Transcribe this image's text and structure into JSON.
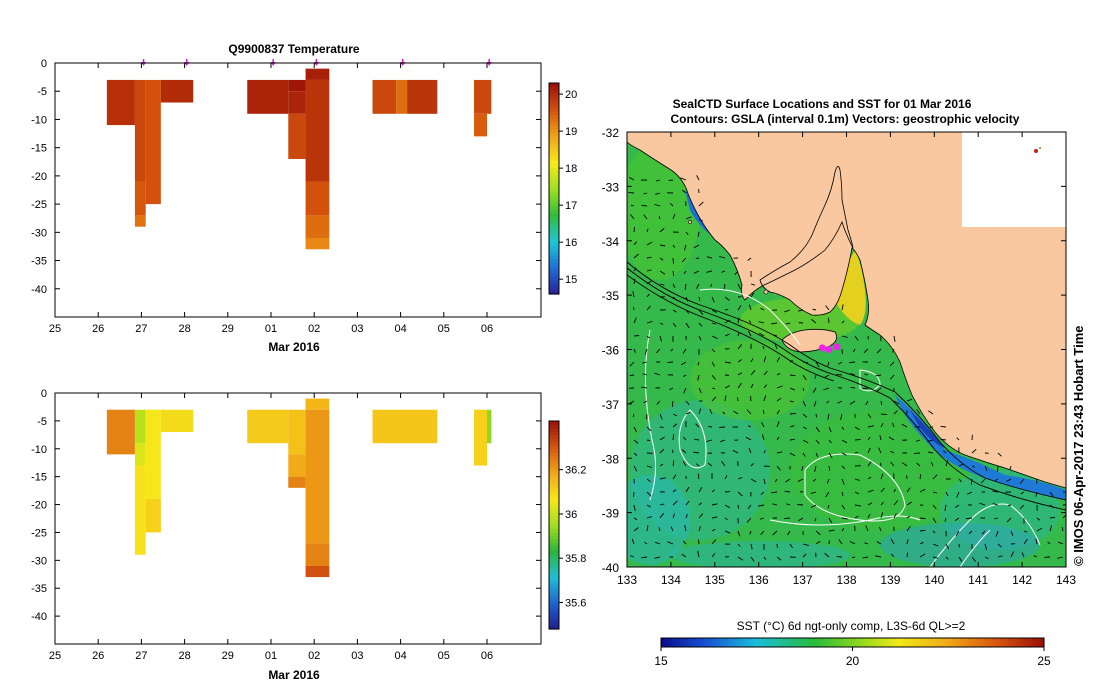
{
  "colors": {
    "land": "#f9c8a0",
    "temp_bar": [
      "#2a1f93",
      "#1f6fd6",
      "#1fc7d8",
      "#2fbe3a",
      "#9ee01f",
      "#f6ea1a",
      "#f2a316",
      "#d4520d",
      "#9b1008"
    ],
    "sal_bar": [
      "#221c8c",
      "#1d63cf",
      "#20bfd6",
      "#2cb53a",
      "#a2de1e",
      "#f6e81b",
      "#f2a818",
      "#d4560e",
      "#9a1209"
    ],
    "sst_bar": [
      "#0b0b8a",
      "#1655d6",
      "#1bbfd8",
      "#27bb3c",
      "#8fd81f",
      "#f2e91b",
      "#f0a818",
      "#d8520e",
      "#9a0f08"
    ]
  },
  "chart_data": [
    {
      "id": "temperature",
      "type": "heatmap",
      "title": "Q9900837  Temperature",
      "xlabel": "Mar 2016",
      "ylabel": "",
      "xlim": [
        0,
        11.25
      ],
      "ylim": [
        -45,
        0
      ],
      "x_ticks": [
        {
          "v": 0,
          "l": "25"
        },
        {
          "v": 1,
          "l": "26"
        },
        {
          "v": 2,
          "l": "27"
        },
        {
          "v": 3,
          "l": "28"
        },
        {
          "v": 4,
          "l": "29"
        },
        {
          "v": 5,
          "l": "01"
        },
        {
          "v": 6,
          "l": "02"
        },
        {
          "v": 7,
          "l": "03"
        },
        {
          "v": 8,
          "l": "04"
        },
        {
          "v": 9,
          "l": "05"
        },
        {
          "v": 10,
          "l": "06"
        }
      ],
      "y_ticks": [
        0,
        -5,
        -10,
        -15,
        -20,
        -25,
        -30,
        -35,
        -40
      ],
      "profile_markers": [
        2.05,
        3.05,
        5.05,
        6.05,
        8.05,
        10.05
      ],
      "colorbar": {
        "min": 14.6,
        "max": 20.3,
        "ticks": [
          15,
          16,
          17,
          18,
          19,
          20
        ]
      },
      "cells": [
        {
          "x0": 1.2,
          "x1": 1.85,
          "y0": -3,
          "y1": -11,
          "v": 19.95
        },
        {
          "x0": 1.85,
          "x1": 2.1,
          "y0": -3,
          "y1": -21,
          "v": 19.7
        },
        {
          "x0": 1.85,
          "x1": 2.1,
          "y0": -21,
          "y1": -27,
          "v": 19.55
        },
        {
          "x0": 1.85,
          "x1": 2.1,
          "y0": -27,
          "y1": -29,
          "v": 19.3
        },
        {
          "x0": 2.1,
          "x1": 2.45,
          "y0": -3,
          "y1": -25,
          "v": 19.6
        },
        {
          "x0": 2.45,
          "x1": 3.2,
          "y0": -3,
          "y1": -7,
          "v": 20.0
        },
        {
          "x0": 4.45,
          "x1": 5.4,
          "y0": -3,
          "y1": -9,
          "v": 20.1
        },
        {
          "x0": 5.4,
          "x1": 5.8,
          "y0": -3,
          "y1": -5,
          "v": 20.25
        },
        {
          "x0": 5.4,
          "x1": 5.8,
          "y0": -5,
          "y1": -9,
          "v": 20.1
        },
        {
          "x0": 5.4,
          "x1": 5.8,
          "y0": -9,
          "y1": -17,
          "v": 19.7
        },
        {
          "x0": 5.8,
          "x1": 6.35,
          "y0": -1,
          "y1": -3,
          "v": 20.15
        },
        {
          "x0": 5.8,
          "x1": 6.35,
          "y0": -3,
          "y1": -21,
          "v": 19.9
        },
        {
          "x0": 5.8,
          "x1": 6.35,
          "y0": -21,
          "y1": -27,
          "v": 19.6
        },
        {
          "x0": 5.8,
          "x1": 6.35,
          "y0": -27,
          "y1": -31,
          "v": 19.35
        },
        {
          "x0": 5.8,
          "x1": 6.35,
          "y0": -31,
          "y1": -33,
          "v": 19.1
        },
        {
          "x0": 7.35,
          "x1": 7.9,
          "y0": -3,
          "y1": -9,
          "v": 19.7
        },
        {
          "x0": 7.9,
          "x1": 8.15,
          "y0": -3,
          "y1": -9,
          "v": 19.35
        },
        {
          "x0": 8.15,
          "x1": 8.85,
          "y0": -3,
          "y1": -9,
          "v": 19.9
        },
        {
          "x0": 9.7,
          "x1": 10.1,
          "y0": -3,
          "y1": -9,
          "v": 19.7
        },
        {
          "x0": 9.7,
          "x1": 10.0,
          "y0": -9,
          "y1": -13,
          "v": 19.5
        }
      ]
    },
    {
      "id": "salinity",
      "type": "heatmap",
      "title": "",
      "xlabel": "Mar 2016",
      "ylabel": "",
      "xlim": [
        0,
        11.25
      ],
      "ylim": [
        -45,
        0
      ],
      "x_ticks": [
        {
          "v": 0,
          "l": "25"
        },
        {
          "v": 1,
          "l": "26"
        },
        {
          "v": 2,
          "l": "27"
        },
        {
          "v": 3,
          "l": "28"
        },
        {
          "v": 4,
          "l": "29"
        },
        {
          "v": 5,
          "l": "01"
        },
        {
          "v": 6,
          "l": "02"
        },
        {
          "v": 7,
          "l": "03"
        },
        {
          "v": 8,
          "l": "04"
        },
        {
          "v": 9,
          "l": "05"
        },
        {
          "v": 10,
          "l": "06"
        }
      ],
      "y_ticks": [
        0,
        -5,
        -10,
        -15,
        -20,
        -25,
        -30,
        -35,
        -40
      ],
      "colorbar": {
        "min": 35.48,
        "max": 36.42,
        "ticks": [
          35.6,
          35.8,
          36,
          36.2
        ]
      },
      "cells": [
        {
          "x0": 1.2,
          "x1": 1.85,
          "y0": -3,
          "y1": -11,
          "v": 36.24
        },
        {
          "x0": 1.85,
          "x1": 2.1,
          "y0": -3,
          "y1": -9,
          "v": 35.98
        },
        {
          "x0": 1.85,
          "x1": 2.1,
          "y0": -9,
          "y1": -13,
          "v": 36.03
        },
        {
          "x0": 1.85,
          "x1": 2.1,
          "y0": -13,
          "y1": -29,
          "v": 36.08
        },
        {
          "x0": 2.1,
          "x1": 2.45,
          "y0": -3,
          "y1": -19,
          "v": 36.07
        },
        {
          "x0": 2.1,
          "x1": 2.45,
          "y0": -19,
          "y1": -25,
          "v": 36.11
        },
        {
          "x0": 2.45,
          "x1": 3.2,
          "y0": -3,
          "y1": -7,
          "v": 36.09
        },
        {
          "x0": 4.45,
          "x1": 5.4,
          "y0": -3,
          "y1": -9,
          "v": 36.12
        },
        {
          "x0": 5.4,
          "x1": 5.8,
          "y0": -3,
          "y1": -11,
          "v": 36.14
        },
        {
          "x0": 5.4,
          "x1": 5.8,
          "y0": -11,
          "y1": -15,
          "v": 36.18
        },
        {
          "x0": 5.4,
          "x1": 5.8,
          "y0": -15,
          "y1": -17,
          "v": 36.24
        },
        {
          "x0": 5.8,
          "x1": 6.35,
          "y0": -1,
          "y1": -3,
          "v": 36.16
        },
        {
          "x0": 5.8,
          "x1": 6.35,
          "y0": -3,
          "y1": -27,
          "v": 36.21
        },
        {
          "x0": 5.8,
          "x1": 6.35,
          "y0": -27,
          "y1": -31,
          "v": 36.24
        },
        {
          "x0": 5.8,
          "x1": 6.35,
          "y0": -31,
          "y1": -33,
          "v": 36.31
        },
        {
          "x0": 7.35,
          "x1": 8.85,
          "y0": -3,
          "y1": -9,
          "v": 36.13
        },
        {
          "x0": 9.7,
          "x1": 10.0,
          "y0": -3,
          "y1": -13,
          "v": 36.11
        },
        {
          "x0": 10.0,
          "x1": 10.1,
          "y0": -3,
          "y1": -9,
          "v": 35.93
        }
      ]
    }
  ],
  "map": {
    "title_line1": "SealCTD Surface Locations and SST for 01 Mar 2016",
    "title_line2": "Contours: GSLA (interval 0.1m) Vectors: geostrophic velocity",
    "xlim": [
      133,
      143
    ],
    "ylim": [
      -40,
      -32
    ],
    "x_ticks": [
      133,
      134,
      135,
      136,
      137,
      138,
      139,
      140,
      141,
      142,
      143
    ],
    "y_ticks": [
      -32,
      -33,
      -34,
      -35,
      -36,
      -37,
      -38,
      -39,
      -40
    ],
    "sst_range": [
      15,
      25
    ],
    "colorbar_label": "SST (°C) 6d ngt-only comp, L3S-6d QL>=2",
    "colorbar_ticks": [
      15,
      20,
      25
    ],
    "seal_locations": [
      {
        "lon": 137.45,
        "lat": -35.97
      },
      {
        "lon": 137.6,
        "lat": -36.0
      },
      {
        "lon": 137.78,
        "lat": -35.95
      }
    ],
    "credit": "© IMOS 06-Apr-2017 23:43 Hobart Time"
  }
}
